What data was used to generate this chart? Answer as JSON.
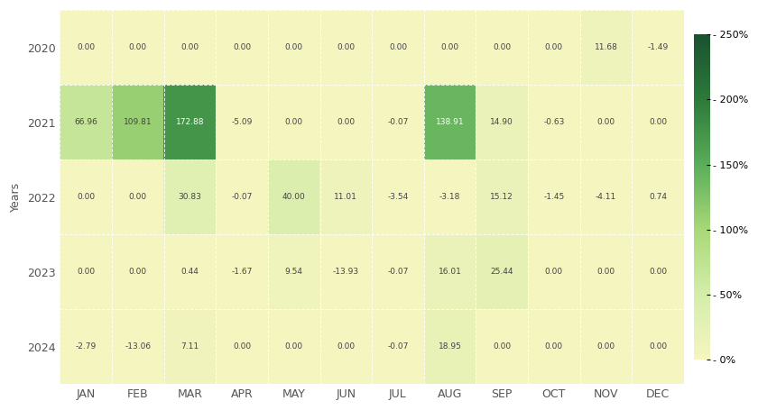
{
  "years": [
    2020,
    2021,
    2022,
    2023,
    2024
  ],
  "months": [
    "JAN",
    "FEB",
    "MAR",
    "APR",
    "MAY",
    "JUN",
    "JUL",
    "AUG",
    "SEP",
    "OCT",
    "NOV",
    "DEC"
  ],
  "values": [
    [
      0.0,
      0.0,
      0.0,
      0.0,
      0.0,
      0.0,
      0.0,
      0.0,
      0.0,
      0.0,
      11.68,
      -1.49
    ],
    [
      66.96,
      109.81,
      172.88,
      -5.09,
      0.0,
      0.0,
      -0.07,
      138.91,
      14.9,
      -0.63,
      0.0,
      0.0
    ],
    [
      0.0,
      0.0,
      30.83,
      -0.07,
      40.0,
      11.01,
      -3.54,
      -3.18,
      15.12,
      -1.45,
      -4.11,
      0.74
    ],
    [
      0.0,
      0.0,
      0.44,
      -1.67,
      9.54,
      -13.93,
      -0.07,
      16.01,
      25.44,
      0.0,
      0.0,
      0.0
    ],
    [
      -2.79,
      -13.06,
      7.11,
      0.0,
      0.0,
      0.0,
      -0.07,
      18.95,
      0.0,
      0.0,
      0.0,
      0.0
    ]
  ],
  "vmin": 0,
  "vmax": 250,
  "ylabel": "Years",
  "colorbar_ticks": [
    0,
    50,
    100,
    150,
    200,
    250
  ],
  "colorbar_labels": [
    "- 0%",
    "- 50%",
    "- 100%",
    "- 150%",
    "- 200%",
    "- 250%"
  ],
  "background_color": "#ffffff",
  "text_color": "#555555",
  "cell_text_fontsize": 6.5,
  "tick_fontsize": 9
}
